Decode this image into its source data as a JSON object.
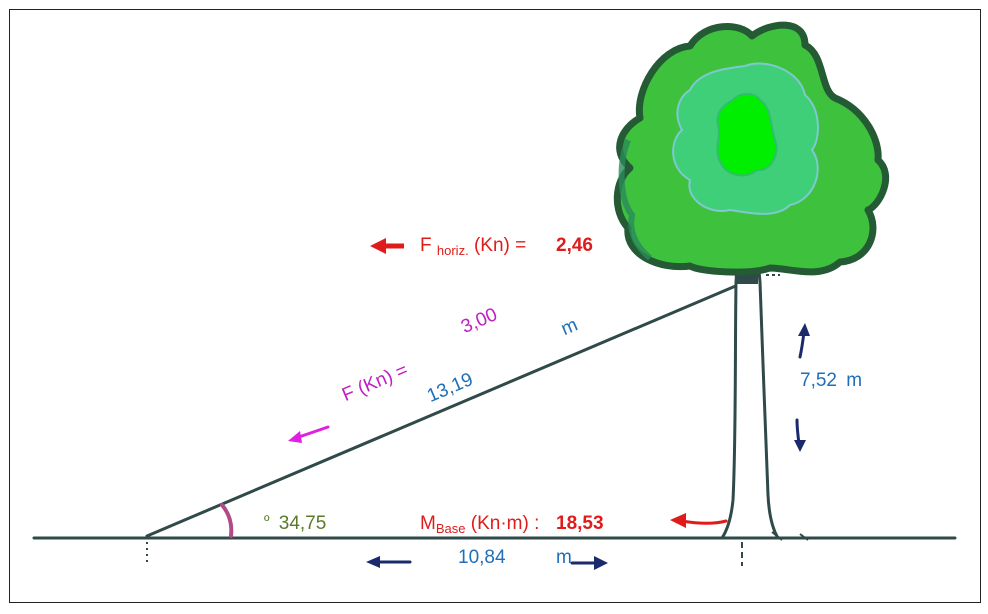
{
  "force": {
    "label": "F (Kn) =",
    "value": "3,00"
  },
  "hypotenuse": {
    "value": "13,19",
    "unit": "m"
  },
  "horizontal_force": {
    "symbol": "F",
    "subscript": "horiz.",
    "unit_suffix": "(Kn) =",
    "value": "2,46"
  },
  "height": {
    "value": "7,52",
    "unit": "m"
  },
  "angle": {
    "symbol": "º",
    "value": "34,75"
  },
  "moment": {
    "symbol": "M",
    "subscript": "Base",
    "unit_suffix": "(Kn·m) :",
    "value": "18,53"
  },
  "base": {
    "value": "10,84",
    "unit": "m"
  },
  "colors": {
    "blue_text": "#1f6fb8",
    "magenta_text": "#c020c0",
    "red_text": "#e01b1b",
    "olive_text": "#5a7a2a",
    "navy_arrow": "#1a2a6c",
    "cable": "#2f4a48",
    "canopy_outer": "#3ec23e",
    "canopy_mid": "#3ecf78",
    "canopy_inner": "#00ee00"
  }
}
